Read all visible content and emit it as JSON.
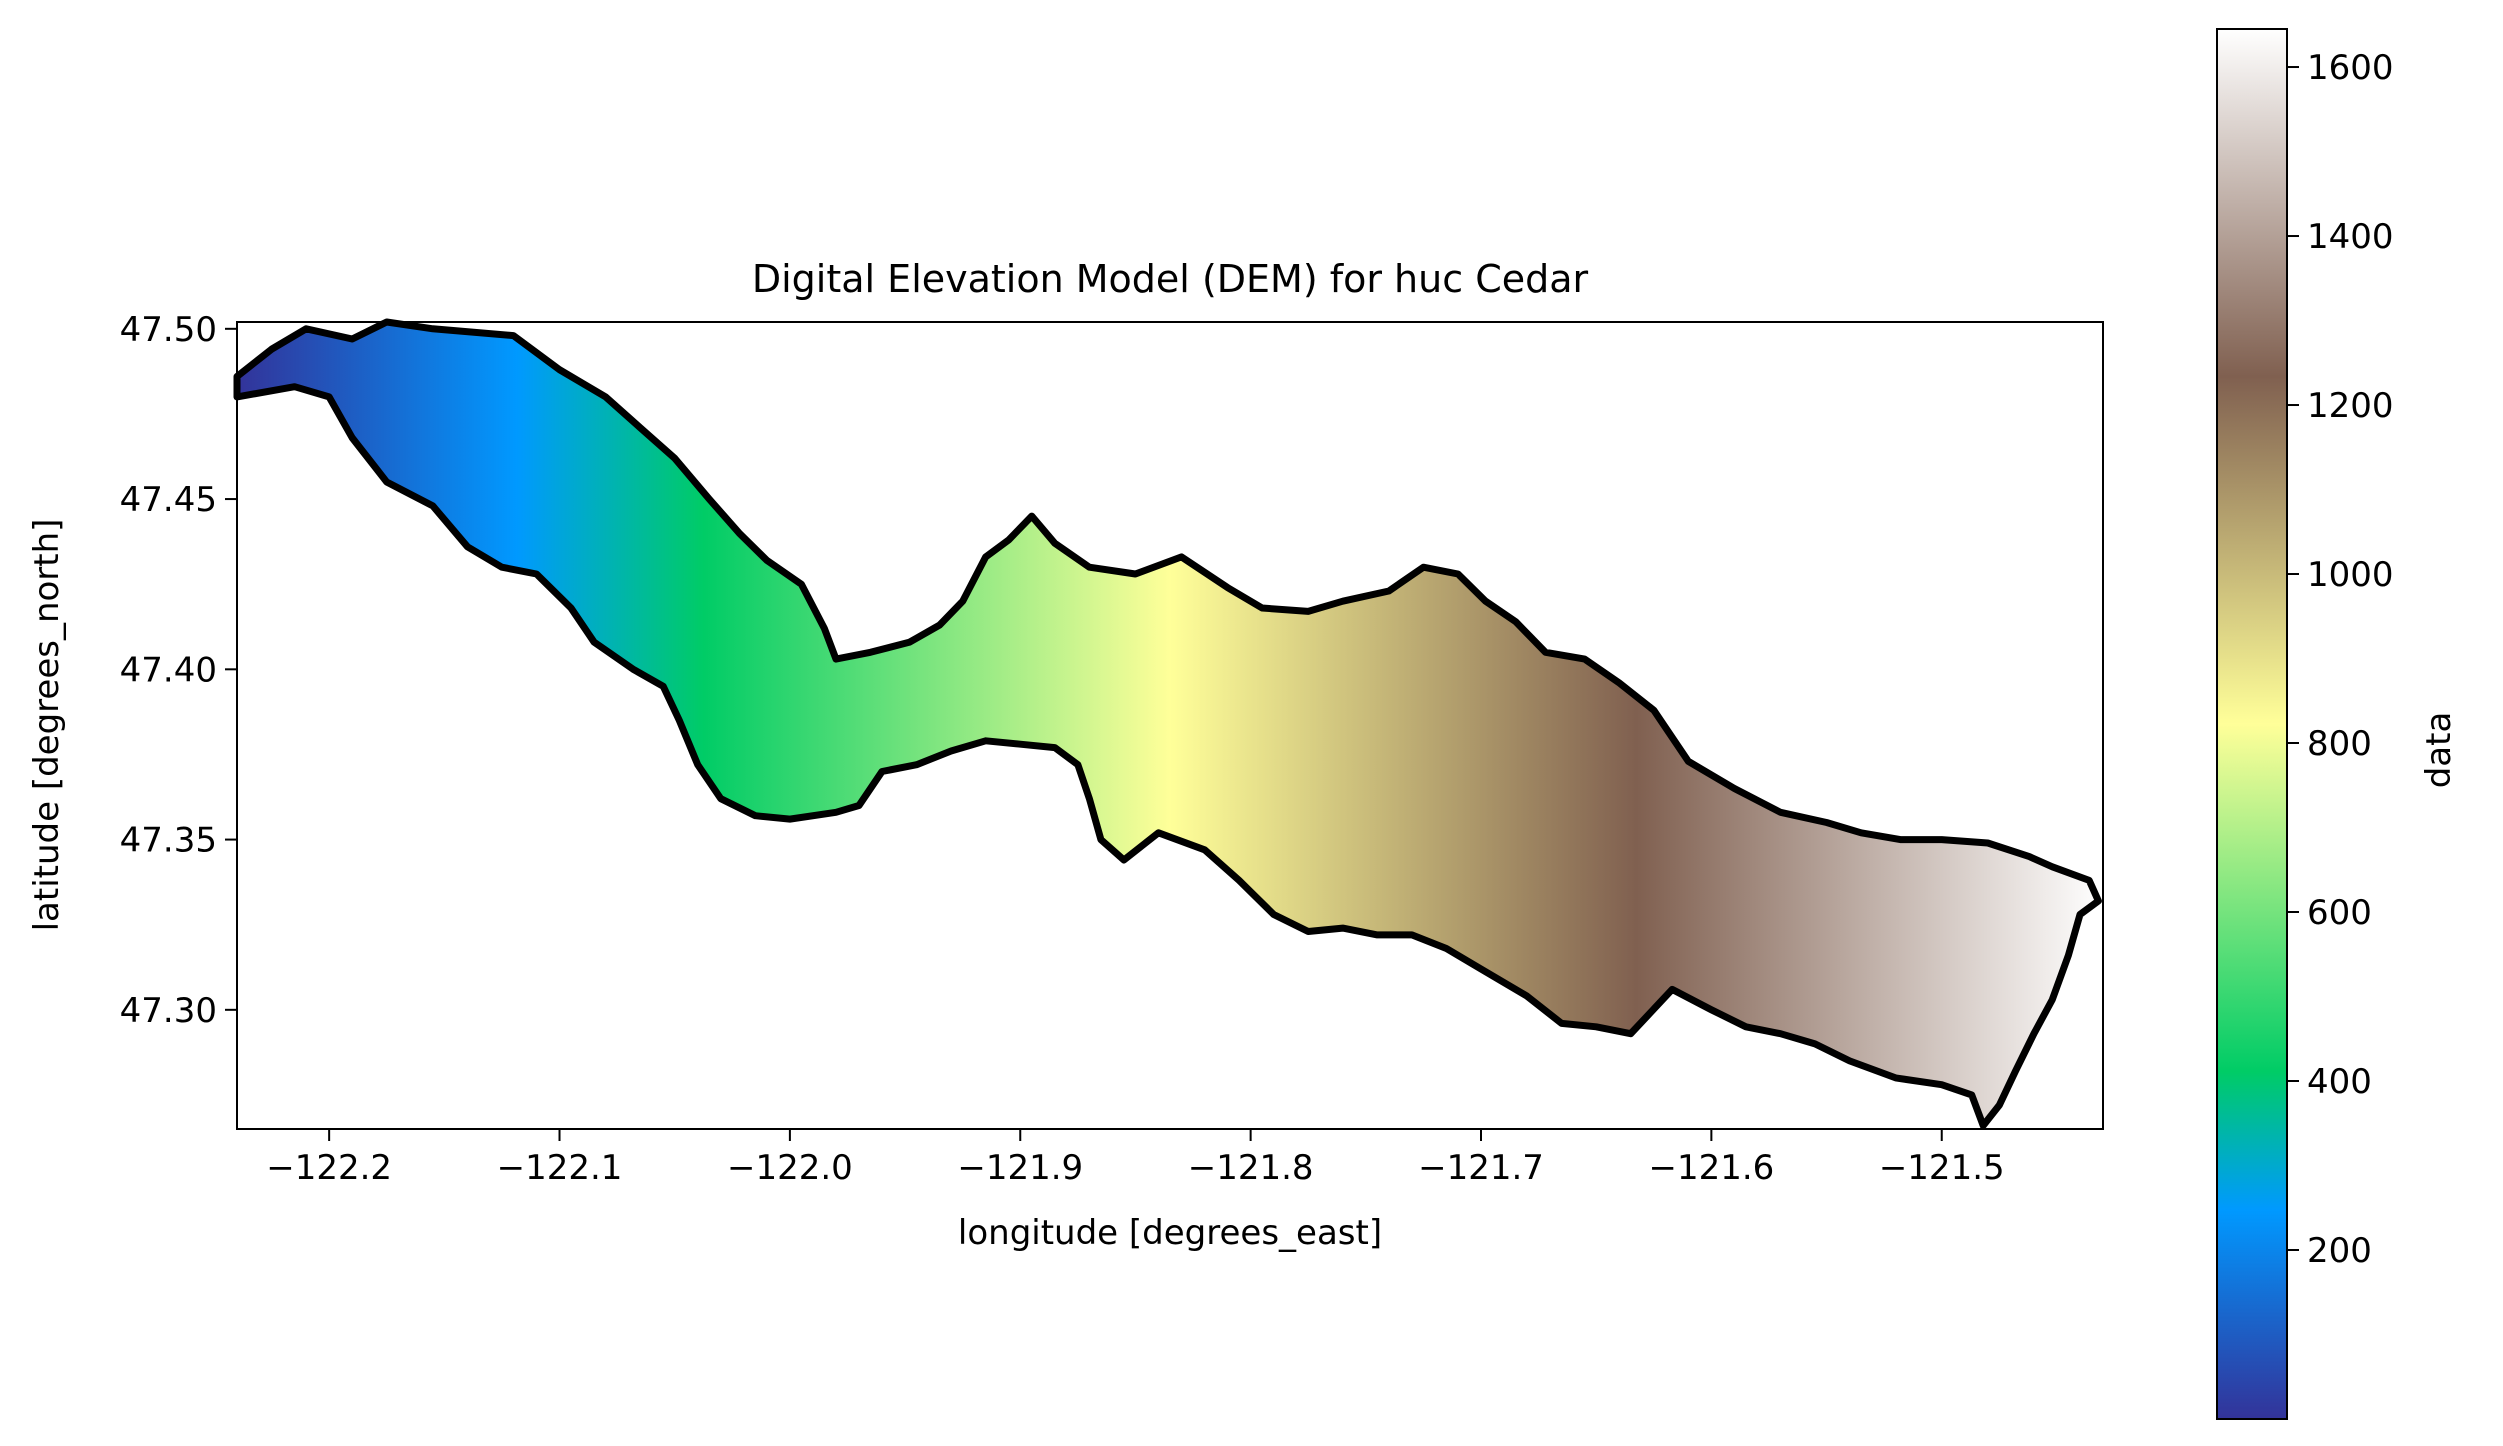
{
  "chart_data": {
    "type": "heatmap",
    "title": "Digital Elevation Model (DEM) for huc Cedar",
    "xlabel": "longitude [degrees_east]",
    "ylabel": "latitude [degrees_north]",
    "xlim": [
      -122.24,
      -121.43
    ],
    "ylim": [
      47.265,
      47.502
    ],
    "x_ticks": [
      -122.2,
      -122.1,
      -122.0,
      -121.9,
      -121.8,
      -121.7,
      -121.6,
      -121.5
    ],
    "x_tick_labels": [
      "−122.2",
      "−122.1",
      "−122.0",
      "−121.9",
      "−121.8",
      "−121.7",
      "−121.6",
      "−121.5"
    ],
    "y_ticks": [
      47.3,
      47.35,
      47.4,
      47.45,
      47.5
    ],
    "y_tick_labels": [
      "47.30",
      "47.35",
      "47.40",
      "47.45",
      "47.50"
    ],
    "colorbar": {
      "label": "data",
      "colormap": "terrain",
      "range": [
        0,
        1645
      ],
      "ticks": [
        200,
        400,
        600,
        800,
        1000,
        1200,
        1400,
        1600
      ],
      "tick_labels": [
        "200",
        "400",
        "600",
        "800",
        "1000",
        "1200",
        "1400",
        "1600"
      ],
      "colors": [
        "#333399",
        "#0099ff",
        "#00cc66",
        "#ffff99",
        "#806050",
        "#ffffff"
      ],
      "color_stops": [
        0,
        0.15,
        0.25,
        0.5,
        0.75,
        1.0
      ]
    },
    "boundary_color": "#000000",
    "boundary_lonlat": [
      [
        -122.24,
        47.486
      ],
      [
        -122.225,
        47.494
      ],
      [
        -122.21,
        47.5
      ],
      [
        -122.19,
        47.497
      ],
      [
        -122.175,
        47.502
      ],
      [
        -122.155,
        47.5
      ],
      [
        -122.12,
        47.498
      ],
      [
        -122.1,
        47.488
      ],
      [
        -122.08,
        47.48
      ],
      [
        -122.065,
        47.471
      ],
      [
        -122.05,
        47.462
      ],
      [
        -122.035,
        47.45
      ],
      [
        -122.022,
        47.44
      ],
      [
        -122.01,
        47.432
      ],
      [
        -121.995,
        47.425
      ],
      [
        -121.985,
        47.412
      ],
      [
        -121.98,
        47.403
      ],
      [
        -121.965,
        47.405
      ],
      [
        -121.948,
        47.408
      ],
      [
        -121.935,
        47.413
      ],
      [
        -121.925,
        47.42
      ],
      [
        -121.915,
        47.433
      ],
      [
        -121.905,
        47.438
      ],
      [
        -121.895,
        47.445
      ],
      [
        -121.885,
        47.437
      ],
      [
        -121.87,
        47.43
      ],
      [
        -121.85,
        47.428
      ],
      [
        -121.83,
        47.433
      ],
      [
        -121.81,
        47.424
      ],
      [
        -121.795,
        47.418
      ],
      [
        -121.775,
        47.417
      ],
      [
        -121.76,
        47.42
      ],
      [
        -121.74,
        47.423
      ],
      [
        -121.725,
        47.43
      ],
      [
        -121.71,
        47.428
      ],
      [
        -121.698,
        47.42
      ],
      [
        -121.685,
        47.414
      ],
      [
        -121.672,
        47.405
      ],
      [
        -121.655,
        47.403
      ],
      [
        -121.64,
        47.396
      ],
      [
        -121.625,
        47.388
      ],
      [
        -121.61,
        47.373
      ],
      [
        -121.59,
        47.365
      ],
      [
        -121.57,
        47.358
      ],
      [
        -121.55,
        47.355
      ],
      [
        -121.535,
        47.352
      ],
      [
        -121.518,
        47.35
      ],
      [
        -121.5,
        47.35
      ],
      [
        -121.48,
        47.349
      ],
      [
        -121.462,
        47.345
      ],
      [
        -121.452,
        47.342
      ],
      [
        -121.436,
        47.338
      ],
      [
        -121.432,
        47.332
      ],
      [
        -121.44,
        47.328
      ],
      [
        -121.445,
        47.316
      ],
      [
        -121.452,
        47.303
      ],
      [
        -121.46,
        47.293
      ],
      [
        -121.468,
        47.282
      ],
      [
        -121.475,
        47.272
      ],
      [
        -121.482,
        47.266
      ],
      [
        -121.487,
        47.275
      ],
      [
        -121.5,
        47.278
      ],
      [
        -121.52,
        47.28
      ],
      [
        -121.54,
        47.285
      ],
      [
        -121.555,
        47.29
      ],
      [
        -121.57,
        47.293
      ],
      [
        -121.585,
        47.295
      ],
      [
        -121.6,
        47.3
      ],
      [
        -121.617,
        47.306
      ],
      [
        -121.635,
        47.293
      ],
      [
        -121.65,
        47.295
      ],
      [
        -121.665,
        47.296
      ],
      [
        -121.68,
        47.304
      ],
      [
        -121.7,
        47.312
      ],
      [
        -121.715,
        47.318
      ],
      [
        -121.73,
        47.322
      ],
      [
        -121.745,
        47.322
      ],
      [
        -121.76,
        47.324
      ],
      [
        -121.775,
        47.323
      ],
      [
        -121.79,
        47.328
      ],
      [
        -121.805,
        47.338
      ],
      [
        -121.82,
        47.347
      ],
      [
        -121.84,
        47.352
      ],
      [
        -121.855,
        47.344
      ],
      [
        -121.865,
        47.35
      ],
      [
        -121.87,
        47.362
      ],
      [
        -121.875,
        47.372
      ],
      [
        -121.885,
        47.377
      ],
      [
        -121.9,
        47.378
      ],
      [
        -121.915,
        47.379
      ],
      [
        -121.93,
        47.376
      ],
      [
        -121.945,
        47.372
      ],
      [
        -121.96,
        47.37
      ],
      [
        -121.97,
        47.36
      ],
      [
        -121.98,
        47.358
      ],
      [
        -122.0,
        47.356
      ],
      [
        -122.015,
        47.357
      ],
      [
        -122.03,
        47.362
      ],
      [
        -122.04,
        47.372
      ],
      [
        -122.048,
        47.385
      ],
      [
        -122.055,
        47.395
      ],
      [
        -122.068,
        47.4
      ],
      [
        -122.085,
        47.408
      ],
      [
        -122.095,
        47.418
      ],
      [
        -122.11,
        47.428
      ],
      [
        -122.125,
        47.43
      ],
      [
        -122.14,
        47.436
      ],
      [
        -122.155,
        47.448
      ],
      [
        -122.175,
        47.455
      ],
      [
        -122.19,
        47.468
      ],
      [
        -122.2,
        47.48
      ],
      [
        -122.215,
        47.483
      ],
      [
        -122.24,
        47.48
      ]
    ]
  }
}
